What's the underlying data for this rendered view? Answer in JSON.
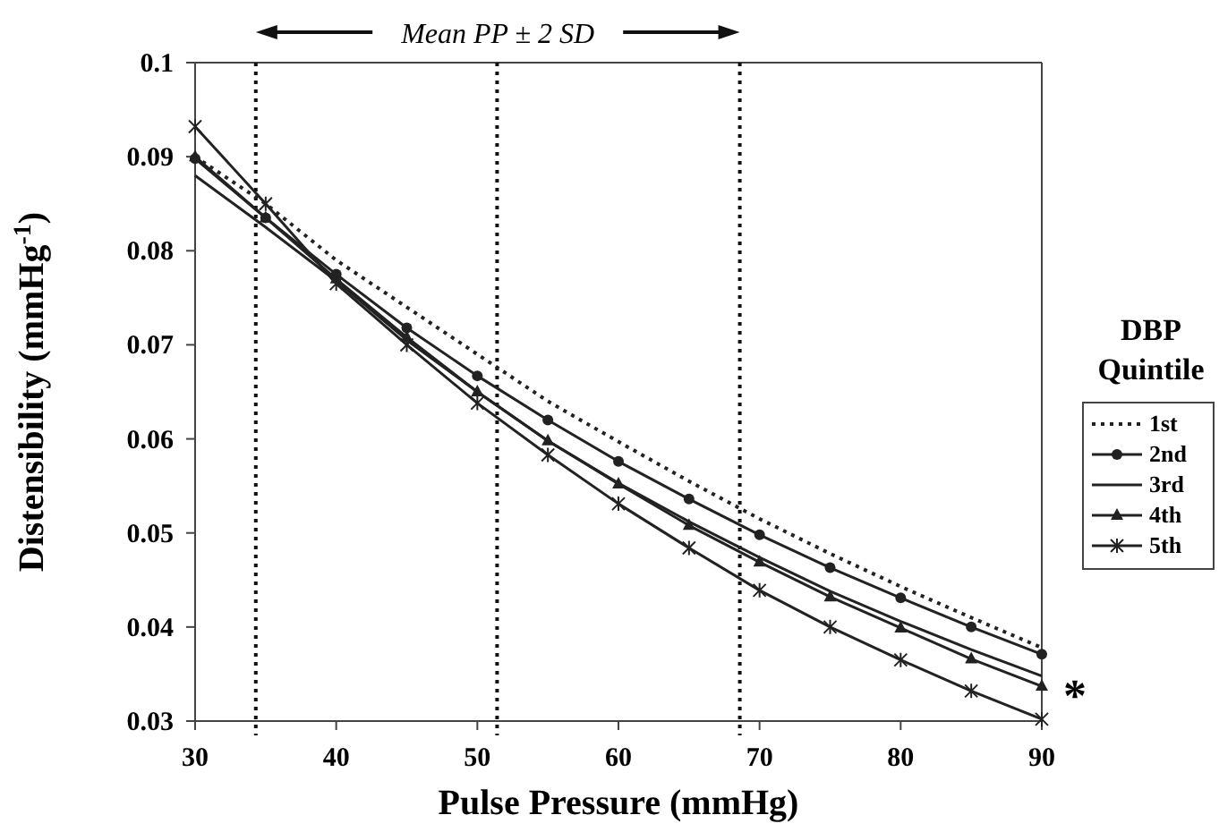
{
  "chart_data": {
    "type": "line",
    "xlabel": "Pulse Pressure (mmHg)",
    "ylabel": "Distensibility (mmHg$^{-1}$)",
    "legend_title": "DBP Quintile",
    "legend": "right",
    "grid": false,
    "x": [
      30,
      35,
      40,
      45,
      50,
      55,
      60,
      65,
      70,
      75,
      80,
      85,
      90
    ],
    "xlim": [
      30,
      90
    ],
    "xticks": [
      30,
      40,
      50,
      60,
      70,
      80,
      90
    ],
    "ylim": [
      0.03,
      0.1
    ],
    "yticks": [
      0.03,
      0.04,
      0.05,
      0.06,
      0.07,
      0.08,
      0.09,
      0.1
    ],
    "series": [
      {
        "name": "1st",
        "color": "#222222",
        "line_style": "dotted",
        "marker": "none",
        "values": [
          0.09,
          0.085,
          0.079,
          0.074,
          0.069,
          0.064,
          0.0597,
          0.0555,
          0.0515,
          0.0478,
          0.0443,
          0.041,
          0.0378
        ]
      },
      {
        "name": "2nd",
        "color": "#222222",
        "line_style": "solid",
        "marker": "circle",
        "values": [
          0.0898,
          0.0835,
          0.0775,
          0.0718,
          0.0667,
          0.062,
          0.0576,
          0.0536,
          0.0498,
          0.0463,
          0.0431,
          0.04,
          0.0371
        ]
      },
      {
        "name": "3rd",
        "color": "#222222",
        "line_style": "solid",
        "marker": "none",
        "values": [
          0.088,
          0.0825,
          0.0768,
          0.0705,
          0.065,
          0.0598,
          0.0553,
          0.0512,
          0.0474,
          0.0438,
          0.0406,
          0.0376,
          0.0348
        ]
      },
      {
        "name": "4th",
        "color": "#222222",
        "line_style": "solid",
        "marker": "triangle",
        "values": [
          0.09,
          0.0835,
          0.077,
          0.0708,
          0.065,
          0.0598,
          0.0552,
          0.0508,
          0.0469,
          0.0432,
          0.0399,
          0.0366,
          0.0337
        ]
      },
      {
        "name": "5th",
        "color": "#222222",
        "line_style": "solid",
        "marker": "cross",
        "values": [
          0.0932,
          0.085,
          0.0765,
          0.07,
          0.0638,
          0.0583,
          0.0531,
          0.0484,
          0.0439,
          0.04,
          0.0365,
          0.0332,
          0.0302
        ]
      }
    ],
    "ref_lines": [
      {
        "axis": "x",
        "value": 34.3,
        "line_style": "dotted"
      },
      {
        "axis": "x",
        "value": 51.4,
        "line_style": "dotted"
      },
      {
        "axis": "x",
        "value": 68.6,
        "line_style": "dotted"
      }
    ],
    "annotations": [
      "Mean PP ± 2 SD",
      "*"
    ]
  }
}
